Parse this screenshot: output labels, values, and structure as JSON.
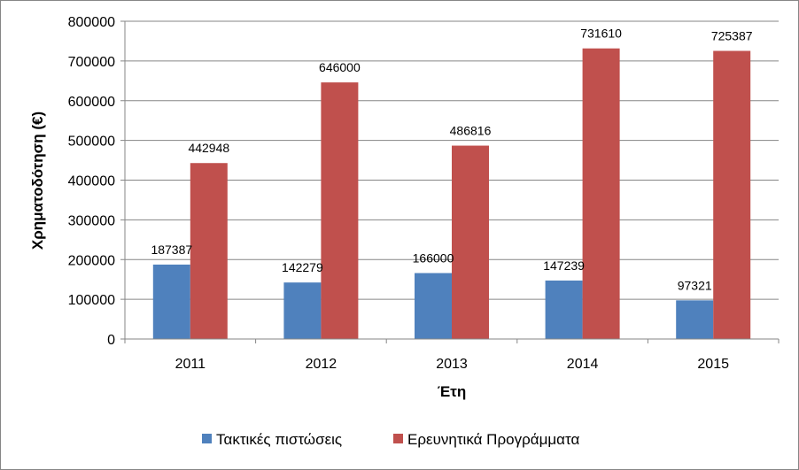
{
  "chart_data": {
    "type": "bar",
    "categories": [
      "2011",
      "2012",
      "2013",
      "2014",
      "2015"
    ],
    "series": [
      {
        "name": "Τακτικές πιστώσεις",
        "values": [
          187387,
          142279,
          166000,
          147239,
          97321
        ],
        "color": "#4F81BD"
      },
      {
        "name": "Ερευνητικά Προγράμματα",
        "values": [
          442948,
          646000,
          486816,
          731610,
          725387
        ],
        "color": "#C0504D"
      }
    ],
    "title": "",
    "xlabel": "Έτη",
    "ylabel": "Χρηματοδότηση (€)",
    "ylim": [
      0,
      800000
    ],
    "yticks": [
      "0",
      "100000",
      "200000",
      "300000",
      "400000",
      "500000",
      "600000",
      "700000",
      "800000"
    ],
    "grid": true,
    "legend": "bottom"
  }
}
